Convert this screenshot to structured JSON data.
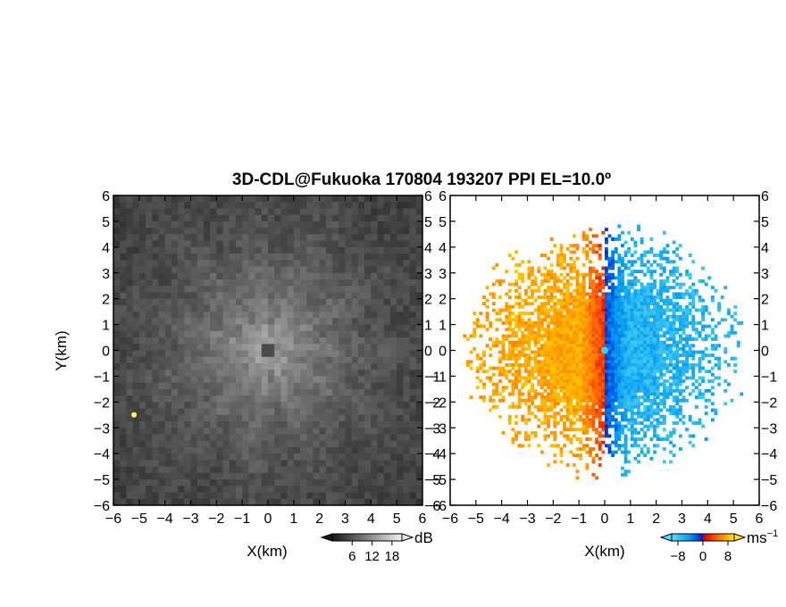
{
  "chart_data": {
    "title": "3D-CDL@Fukuoka 170804 193207 PPI EL=10.0º",
    "panels": [
      {
        "type": "heatmap",
        "quantity": "intensity",
        "xlabel": "X(km)",
        "ylabel": "Y(km)",
        "xlim": [
          -6,
          6
        ],
        "ylim": [
          -6,
          6
        ],
        "xticks": [
          "−6",
          "−5",
          "−4",
          "−3",
          "−2",
          "−1",
          "0",
          "1",
          "2",
          "3",
          "4",
          "5",
          "6"
        ],
        "yticks": [
          "6",
          "5",
          "4",
          "3",
          "2",
          "1",
          "0",
          "−1",
          "−2",
          "−3",
          "−4",
          "−5",
          "−6"
        ],
        "colormap": "grayscale",
        "colorbar": {
          "ticks": [
            "6",
            "12",
            "18"
          ],
          "unit": "dB",
          "range": [
            0,
            21
          ]
        },
        "features": {
          "center_echo_peak_db": 14,
          "background_db": 3,
          "hotspot": {
            "x": -5.2,
            "y": -2.5,
            "color": "#ffff66"
          }
        }
      },
      {
        "type": "heatmap",
        "quantity": "radial velocity",
        "xlabel": "X(km)",
        "xlim": [
          -6,
          6
        ],
        "ylim": [
          -6,
          6
        ],
        "xticks": [
          "−6",
          "−5",
          "−4",
          "−3",
          "−2",
          "−1",
          "0",
          "1",
          "2",
          "3",
          "4",
          "5",
          "6"
        ],
        "yticks": [
          "6",
          "5",
          "4",
          "3",
          "2",
          "1",
          "0",
          "−1",
          "−2",
          "−3",
          "−4",
          "−5",
          "−6"
        ],
        "colormap": "blue-cyan to red-yellow",
        "colorbar": {
          "ticks": [
            "−8",
            "0",
            "8"
          ],
          "unit": "ms",
          "unit_exp": "−1",
          "range": [
            -10,
            10
          ]
        },
        "features": {
          "left_half_velocity_ms": 7,
          "right_half_velocity_ms": -7,
          "data_extent_km": 5
        }
      }
    ]
  }
}
